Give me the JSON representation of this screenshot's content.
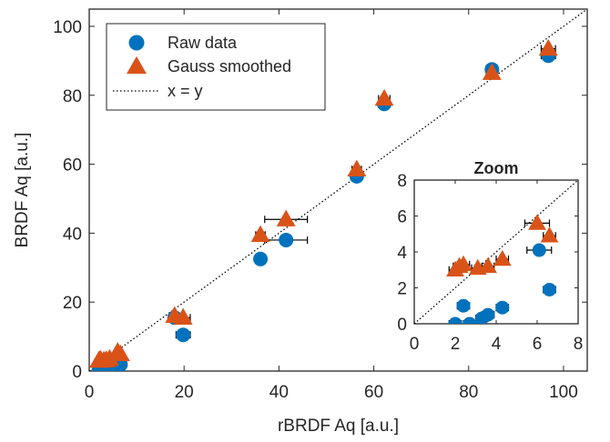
{
  "chart_data": {
    "type": "scatter",
    "xlabel": "rBRDF Aq [a.u.]",
    "ylabel": "BRDF Aq [a.u.]",
    "xlim": [
      0,
      105
    ],
    "ylim": [
      0,
      105
    ],
    "xticks": [
      0,
      20,
      40,
      60,
      80,
      100
    ],
    "yticks": [
      0,
      20,
      40,
      60,
      80,
      100
    ],
    "grid": false,
    "legend_position": "top-left",
    "legend": [
      {
        "label": "Raw data",
        "marker": "circle",
        "color": "#0072BD"
      },
      {
        "label": "Gauss smoothed",
        "marker": "triangle",
        "color": "#D95319"
      },
      {
        "label": "x = y",
        "marker": "dotted-line",
        "color": "#000000"
      }
    ],
    "series": [
      {
        "name": "Raw data",
        "marker": "circle",
        "color": "#0072BD",
        "points": [
          {
            "x": 2.0,
            "y": 0.0,
            "xerr": 0.3
          },
          {
            "x": 2.4,
            "y": 1.0,
            "xerr": 0.3
          },
          {
            "x": 2.7,
            "y": 0.0,
            "xerr": 0.3
          },
          {
            "x": 3.3,
            "y": 0.3,
            "xerr": 0.3
          },
          {
            "x": 3.6,
            "y": 0.5,
            "xerr": 0.3
          },
          {
            "x": 4.3,
            "y": 0.9,
            "xerr": 0.3
          },
          {
            "x": 6.1,
            "y": 4.1,
            "xerr": 0.6
          },
          {
            "x": 6.6,
            "y": 1.9,
            "xerr": 0.3
          },
          {
            "x": 18.0,
            "y": 15.5,
            "xerr": 1.0
          },
          {
            "x": 19.8,
            "y": 10.5,
            "xerr": 1.5
          },
          {
            "x": 36.1,
            "y": 32.5,
            "xerr": 1.0
          },
          {
            "x": 41.5,
            "y": 38.0,
            "xerr": 4.5
          },
          {
            "x": 56.4,
            "y": 56.5,
            "xerr": 1.0
          },
          {
            "x": 62.2,
            "y": 77.5,
            "xerr": 1.2
          },
          {
            "x": 84.9,
            "y": 87.5,
            "xerr": 1.2
          },
          {
            "x": 96.8,
            "y": 91.5,
            "xerr": 1.5
          }
        ]
      },
      {
        "name": "Gauss smoothed",
        "marker": "triangle",
        "color": "#D95319",
        "points": [
          {
            "x": 2.0,
            "y": 3.0,
            "xerr": 0.3
          },
          {
            "x": 2.2,
            "y": 3.2,
            "xerr": 0.3
          },
          {
            "x": 2.4,
            "y": 3.3,
            "xerr": 0.3
          },
          {
            "x": 3.1,
            "y": 3.1,
            "xerr": 0.3
          },
          {
            "x": 3.6,
            "y": 3.2,
            "xerr": 0.3
          },
          {
            "x": 4.3,
            "y": 3.6,
            "xerr": 0.3
          },
          {
            "x": 6.0,
            "y": 5.6,
            "xerr": 0.6
          },
          {
            "x": 6.6,
            "y": 4.9,
            "xerr": 0.3
          },
          {
            "x": 18.0,
            "y": 16.0,
            "xerr": 1.0
          },
          {
            "x": 19.8,
            "y": 15.5,
            "xerr": 1.5
          },
          {
            "x": 36.1,
            "y": 39.5,
            "xerr": 1.0
          },
          {
            "x": 41.5,
            "y": 44.0,
            "xerr": 4.5
          },
          {
            "x": 56.4,
            "y": 58.5,
            "xerr": 1.0
          },
          {
            "x": 62.2,
            "y": 79.0,
            "xerr": 1.2
          },
          {
            "x": 84.9,
            "y": 86.5,
            "xerr": 1.2
          },
          {
            "x": 96.8,
            "y": 93.5,
            "xerr": 1.5
          }
        ]
      }
    ],
    "reference_line": {
      "label": "x = y",
      "style": "dotted",
      "color": "#000000"
    },
    "inset": {
      "title": "Zoom",
      "xlim": [
        0,
        8
      ],
      "ylim": [
        0,
        8
      ],
      "xticks": [
        0,
        2,
        4,
        6,
        8
      ],
      "yticks": [
        0,
        2,
        4,
        6,
        8
      ]
    }
  }
}
